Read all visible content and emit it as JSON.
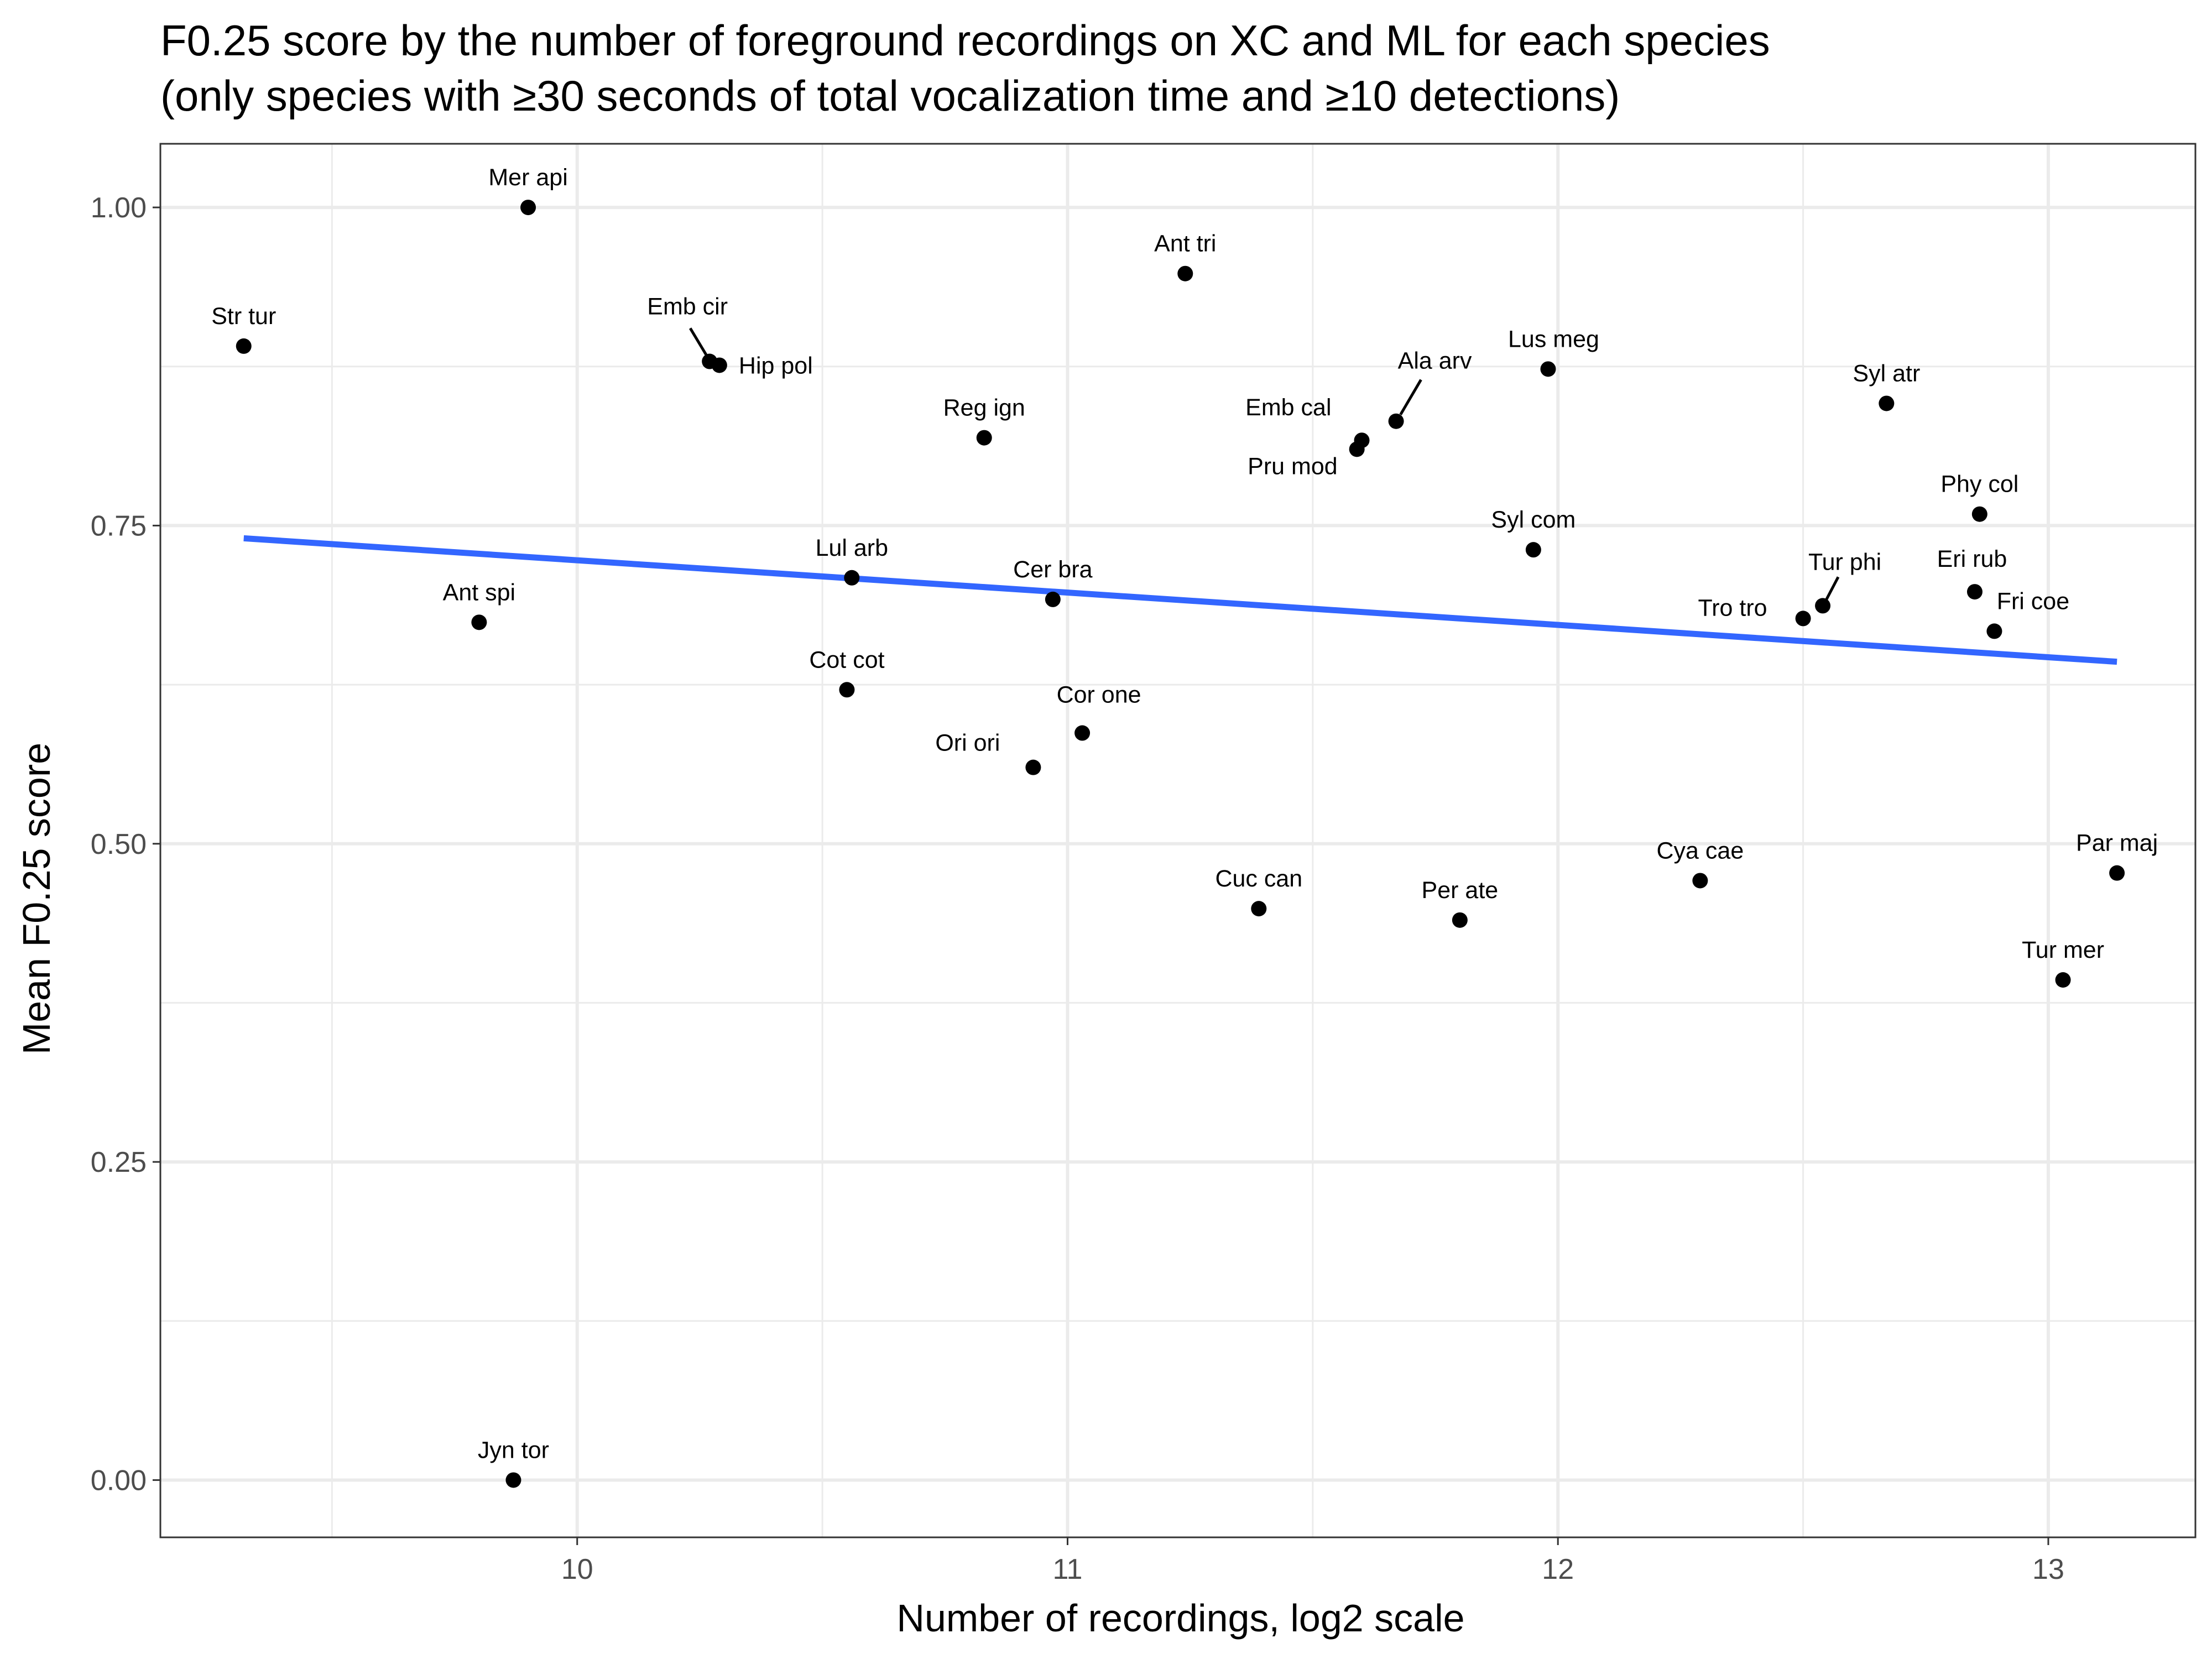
{
  "chart_data": {
    "type": "scatter",
    "title": "F0.25 score by the number of foreground recordings on XC and ML for each species",
    "subtitle": "(only species with ≥30 seconds of total vocalization time and ≥10 detections)",
    "xlabel": "Number of recordings, log2 scale",
    "ylabel": "Mean F0.25 score",
    "xlim": [
      9.15,
      13.3
    ],
    "ylim": [
      -0.045,
      1.05
    ],
    "x_ticks": [
      10,
      11,
      12,
      13
    ],
    "x_tick_labels": [
      "10",
      "11",
      "12",
      "13"
    ],
    "x_minor_ticks": [
      9.5,
      10.5,
      11.5,
      12.5
    ],
    "y_ticks": [
      0.0,
      0.25,
      0.5,
      0.75,
      1.0
    ],
    "y_tick_labels": [
      "0.00",
      "0.25",
      "0.50",
      "0.75",
      "1.00"
    ],
    "y_minor_ticks": [
      0.125,
      0.375,
      0.625,
      0.875
    ],
    "grid": true,
    "theme": "black-and-white",
    "point_color": "#000000",
    "trend_color": "#3366ff",
    "trend_line": {
      "x": [
        9.32,
        13.14
      ],
      "y": [
        0.74,
        0.643
      ]
    },
    "points": [
      {
        "label": "Mer api",
        "x": 9.9,
        "y": 1.0
      },
      {
        "label": "Str tur",
        "x": 9.32,
        "y": 0.891
      },
      {
        "label": "Ant spi",
        "x": 9.8,
        "y": 0.674
      },
      {
        "label": "Jyn tor",
        "x": 9.87,
        "y": 0.0
      },
      {
        "label": "Emb cir",
        "x": 10.27,
        "y": 0.879
      },
      {
        "label": "Hip pol",
        "x": 10.29,
        "y": 0.876
      },
      {
        "label": "Lul arb",
        "x": 10.56,
        "y": 0.709
      },
      {
        "label": "Cot cot",
        "x": 10.55,
        "y": 0.621
      },
      {
        "label": "Reg ign",
        "x": 10.83,
        "y": 0.819
      },
      {
        "label": "Ori ori",
        "x": 10.93,
        "y": 0.56
      },
      {
        "label": "Cer bra",
        "x": 10.97,
        "y": 0.692
      },
      {
        "label": "Cor one",
        "x": 11.03,
        "y": 0.587
      },
      {
        "label": "Ant tri",
        "x": 11.24,
        "y": 0.948
      },
      {
        "label": "Cuc can",
        "x": 11.39,
        "y": 0.449
      },
      {
        "label": "Pru mod",
        "x": 11.59,
        "y": 0.81
      },
      {
        "label": "Emb cal",
        "x": 11.6,
        "y": 0.817
      },
      {
        "label": "Ala arv",
        "x": 11.67,
        "y": 0.832
      },
      {
        "label": "Per ate",
        "x": 11.8,
        "y": 0.44
      },
      {
        "label": "Syl com",
        "x": 11.95,
        "y": 0.731
      },
      {
        "label": "Lus meg",
        "x": 11.98,
        "y": 0.873
      },
      {
        "label": "Cya cae",
        "x": 12.29,
        "y": 0.471
      },
      {
        "label": "Tro tro",
        "x": 12.5,
        "y": 0.677
      },
      {
        "label": "Tur phi",
        "x": 12.54,
        "y": 0.687
      },
      {
        "label": "Syl atr",
        "x": 12.67,
        "y": 0.846
      },
      {
        "label": "Eri rub",
        "x": 12.85,
        "y": 0.698
      },
      {
        "label": "Phy col",
        "x": 12.86,
        "y": 0.759
      },
      {
        "label": "Fri coe",
        "x": 12.89,
        "y": 0.667
      },
      {
        "label": "Tur mer",
        "x": 13.03,
        "y": 0.393
      },
      {
        "label": "Par maj",
        "x": 13.14,
        "y": 0.477
      }
    ]
  }
}
